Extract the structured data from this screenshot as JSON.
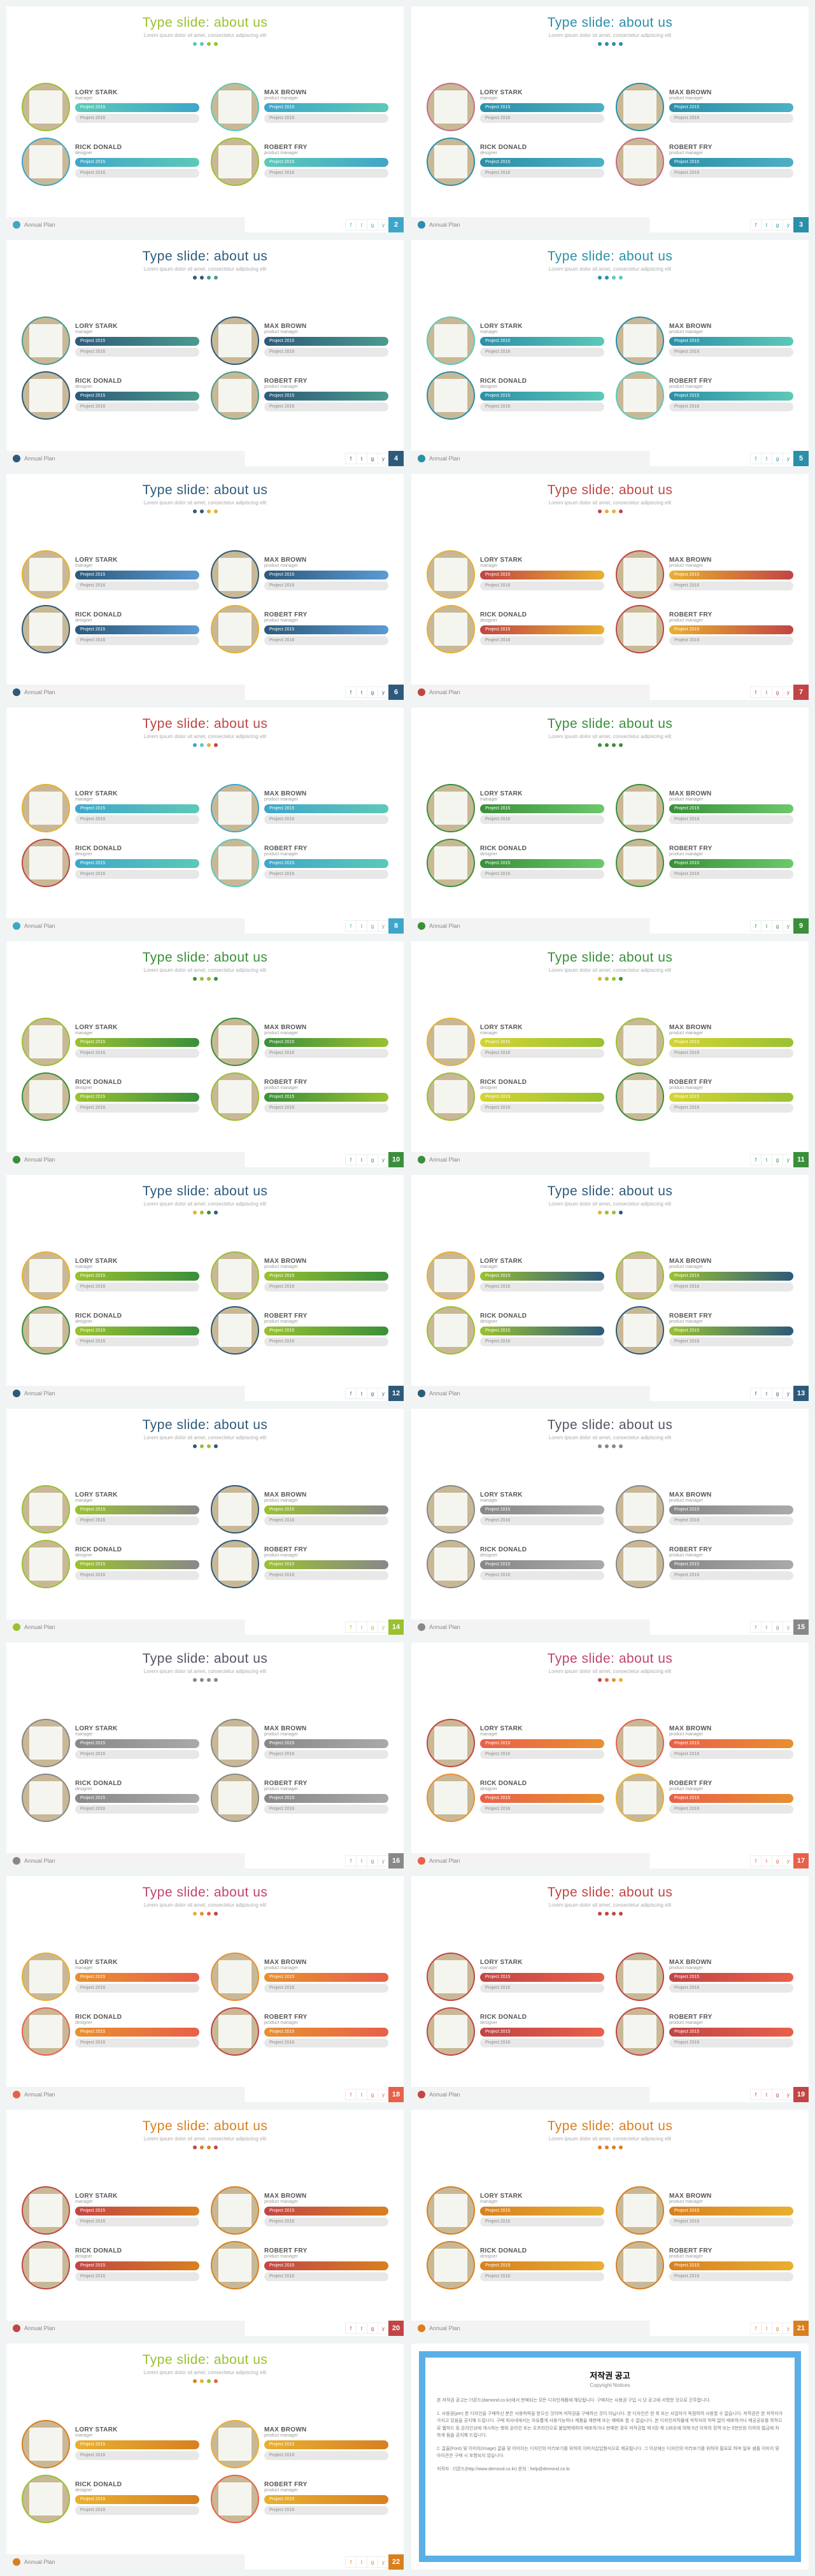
{
  "common": {
    "title": "Type slide: about us",
    "subtitle": "Lorem ipsum dolor sit amet, consectetur adipiscing elit",
    "footer_label": "Annual Plan",
    "people": [
      {
        "name": "LORY STARK",
        "role": "manager",
        "p1": "Project 2015",
        "p2": "Project 2016"
      },
      {
        "name": "MAX BROWN",
        "role": "product manager",
        "p1": "Project 2015",
        "p2": "Project 2016"
      },
      {
        "name": "RICK DONALD",
        "role": "designer",
        "p1": "Project 2015",
        "p2": "Project 2016"
      },
      {
        "name": "ROBERT FRY",
        "role": "product manager",
        "p1": "Project 2015",
        "p2": "Project 2016"
      }
    ],
    "social_icons": [
      "f",
      "t",
      "g",
      "y"
    ]
  },
  "themes": [
    {
      "pg": "2",
      "title": "#9ac132",
      "accent": "#3fa6c9",
      "dots": [
        "#5cc9b8",
        "#5cc9b8",
        "#9ac132",
        "#9ac132"
      ],
      "rings": [
        "#9ac132",
        "#5cc9b8",
        "#3fa6c9",
        "#9ac132"
      ],
      "pills": [
        [
          "#5cc9b8",
          "#3fa6c9"
        ],
        [
          "#3fa6c9",
          "#5cc9b8"
        ],
        [
          "#3fa6c9",
          "#5cc9b8"
        ],
        [
          "#5cc9b8",
          "#3fa6c9"
        ]
      ]
    },
    {
      "pg": "3",
      "title": "#2a8fa8",
      "accent": "#2a8fa8",
      "dots": [
        "#2a8fa8",
        "#2a8fa8",
        "#2a8fa8",
        "#2a8fa8"
      ],
      "rings": [
        "#c96b84",
        "#2a8fa8",
        "#2a8fa8",
        "#c96b84"
      ],
      "pills": [
        [
          "#2a8fa8",
          "#4db0c5"
        ],
        [
          "#2a8fa8",
          "#4db0c5"
        ],
        [
          "#2a8fa8",
          "#4db0c5"
        ],
        [
          "#2a8fa8",
          "#4db0c5"
        ]
      ]
    },
    {
      "pg": "4",
      "title": "#2d5a7a",
      "accent": "#2d5a7a",
      "dots": [
        "#2d5a7a",
        "#2d5a7a",
        "#4a9b8e",
        "#4a9b8e"
      ],
      "rings": [
        "#4a9b8e",
        "#2d5a7a",
        "#2d5a7a",
        "#4a9b8e"
      ],
      "pills": [
        [
          "#2d5a7a",
          "#4a9b8e"
        ],
        [
          "#2d5a7a",
          "#4a9b8e"
        ],
        [
          "#2d5a7a",
          "#4a9b8e"
        ],
        [
          "#2d5a7a",
          "#4a9b8e"
        ]
      ]
    },
    {
      "pg": "5",
      "title": "#2a8fa8",
      "accent": "#2a8fa8",
      "dots": [
        "#2a8fa8",
        "#2a8fa8",
        "#5cc9b8",
        "#5cc9b8"
      ],
      "rings": [
        "#5cc9b8",
        "#2a8fa8",
        "#2a8fa8",
        "#5cc9b8"
      ],
      "pills": [
        [
          "#2a8fa8",
          "#5cc9b8"
        ],
        [
          "#2a8fa8",
          "#5cc9b8"
        ],
        [
          "#2a8fa8",
          "#5cc9b8"
        ],
        [
          "#2a8fa8",
          "#5cc9b8"
        ]
      ]
    },
    {
      "pg": "6",
      "title": "#2d5a7a",
      "accent": "#2d5a7a",
      "dots": [
        "#2d5a7a",
        "#2d5a7a",
        "#e8b030",
        "#e8b030"
      ],
      "rings": [
        "#e8b030",
        "#2d5a7a",
        "#2d5a7a",
        "#e8b030"
      ],
      "pills": [
        [
          "#2d5a7a",
          "#5a9bd4"
        ],
        [
          "#2d5a7a",
          "#5a9bd4"
        ],
        [
          "#2d5a7a",
          "#5a9bd4"
        ],
        [
          "#2d5a7a",
          "#5a9bd4"
        ]
      ]
    },
    {
      "pg": "7",
      "title": "#c14545",
      "accent": "#c14545",
      "dots": [
        "#c14545",
        "#e8b030",
        "#e8b030",
        "#c14545"
      ],
      "rings": [
        "#e8b030",
        "#c14545",
        "#e8b030",
        "#c14545"
      ],
      "pills": [
        [
          "#c14545",
          "#e8b030"
        ],
        [
          "#e8b030",
          "#c14545"
        ],
        [
          "#c14545",
          "#e8b030"
        ],
        [
          "#e8b030",
          "#c14545"
        ]
      ]
    },
    {
      "pg": "8",
      "title": "#c14545",
      "accent": "#3fa6c9",
      "dots": [
        "#3fa6c9",
        "#5cc9b8",
        "#e8b030",
        "#c14545"
      ],
      "rings": [
        "#e8b030",
        "#3fa6c9",
        "#c14545",
        "#5cc9b8"
      ],
      "pills": [
        [
          "#3fa6c9",
          "#5cc9b8"
        ],
        [
          "#3fa6c9",
          "#5cc9b8"
        ],
        [
          "#3fa6c9",
          "#5cc9b8"
        ],
        [
          "#3fa6c9",
          "#5cc9b8"
        ]
      ]
    },
    {
      "pg": "9",
      "title": "#3a8f3a",
      "accent": "#3a8f3a",
      "dots": [
        "#3a8f3a",
        "#3a8f3a",
        "#3a8f3a",
        "#3a8f3a"
      ],
      "rings": [
        "#3a8f3a",
        "#3a8f3a",
        "#3a8f3a",
        "#3a8f3a"
      ],
      "pills": [
        [
          "#3a8f3a",
          "#6bc96b"
        ],
        [
          "#3a8f3a",
          "#6bc96b"
        ],
        [
          "#3a8f3a",
          "#6bc96b"
        ],
        [
          "#3a8f3a",
          "#6bc96b"
        ]
      ]
    },
    {
      "pg": "10",
      "title": "#3a8f3a",
      "accent": "#3a8f3a",
      "dots": [
        "#3a8f3a",
        "#9ac132",
        "#9ac132",
        "#3a8f3a"
      ],
      "rings": [
        "#9ac132",
        "#3a8f3a",
        "#3a8f3a",
        "#9ac132"
      ],
      "pills": [
        [
          "#9ac132",
          "#3a8f3a"
        ],
        [
          "#3a8f3a",
          "#9ac132"
        ],
        [
          "#9ac132",
          "#3a8f3a"
        ],
        [
          "#3a8f3a",
          "#9ac132"
        ]
      ]
    },
    {
      "pg": "11",
      "title": "#3a8f3a",
      "accent": "#3a8f3a",
      "dots": [
        "#e8b030",
        "#9ac132",
        "#9ac132",
        "#3a8f3a"
      ],
      "rings": [
        "#e8b030",
        "#9ac132",
        "#9ac132",
        "#3a8f3a"
      ],
      "pills": [
        [
          "#d4d432",
          "#9ac132"
        ],
        [
          "#d4d432",
          "#9ac132"
        ],
        [
          "#d4d432",
          "#9ac132"
        ],
        [
          "#d4d432",
          "#9ac132"
        ]
      ]
    },
    {
      "pg": "12",
      "title": "#2d5a7a",
      "accent": "#2d5a7a",
      "dots": [
        "#e8b030",
        "#9ac132",
        "#3a8f3a",
        "#2d5a7a"
      ],
      "rings": [
        "#e8b030",
        "#9ac132",
        "#3a8f3a",
        "#2d5a7a"
      ],
      "pills": [
        [
          "#9ac132",
          "#3a8f3a"
        ],
        [
          "#9ac132",
          "#3a8f3a"
        ],
        [
          "#9ac132",
          "#3a8f3a"
        ],
        [
          "#9ac132",
          "#3a8f3a"
        ]
      ]
    },
    {
      "pg": "13",
      "title": "#2d5a7a",
      "accent": "#2d5a7a",
      "dots": [
        "#e8b030",
        "#9ac132",
        "#9ac132",
        "#2d5a7a"
      ],
      "rings": [
        "#e8b030",
        "#9ac132",
        "#9ac132",
        "#2d5a7a"
      ],
      "pills": [
        [
          "#9ac132",
          "#2d5a7a"
        ],
        [
          "#9ac132",
          "#2d5a7a"
        ],
        [
          "#9ac132",
          "#2d5a7a"
        ],
        [
          "#9ac132",
          "#2d5a7a"
        ]
      ]
    },
    {
      "pg": "14",
      "title": "#2d5a7a",
      "accent": "#9ac132",
      "dots": [
        "#2d5a7a",
        "#9ac132",
        "#9ac132",
        "#2d5a7a"
      ],
      "rings": [
        "#9ac132",
        "#2d5a7a",
        "#9ac132",
        "#2d5a7a"
      ],
      "pills": [
        [
          "#9ac132",
          "#888"
        ],
        [
          "#9ac132",
          "#888"
        ],
        [
          "#9ac132",
          "#888"
        ],
        [
          "#9ac132",
          "#888"
        ]
      ]
    },
    {
      "pg": "15",
      "title": "#556",
      "accent": "#888",
      "dots": [
        "#888",
        "#888",
        "#888",
        "#888"
      ],
      "rings": [
        "#888",
        "#888",
        "#888",
        "#888"
      ],
      "pills": [
        [
          "#888",
          "#aaa"
        ],
        [
          "#888",
          "#aaa"
        ],
        [
          "#888",
          "#aaa"
        ],
        [
          "#888",
          "#aaa"
        ]
      ]
    },
    {
      "pg": "16",
      "title": "#556",
      "accent": "#888",
      "dots": [
        "#888",
        "#888",
        "#888",
        "#888"
      ],
      "rings": [
        "#888",
        "#888",
        "#888",
        "#888"
      ],
      "pills": [
        [
          "#888",
          "#aaa"
        ],
        [
          "#888",
          "#aaa"
        ],
        [
          "#888",
          "#aaa"
        ],
        [
          "#888",
          "#aaa"
        ]
      ]
    },
    {
      "pg": "17",
      "title": "#c1456b",
      "accent": "#e8604a",
      "dots": [
        "#c14545",
        "#e8604a",
        "#e89030",
        "#e8b030"
      ],
      "rings": [
        "#c14545",
        "#e8604a",
        "#e89030",
        "#e8b030"
      ],
      "pills": [
        [
          "#e8604a",
          "#e89030"
        ],
        [
          "#e8604a",
          "#e89030"
        ],
        [
          "#e8604a",
          "#e89030"
        ],
        [
          "#e8604a",
          "#e89030"
        ]
      ]
    },
    {
      "pg": "18",
      "title": "#c1456b",
      "accent": "#e8604a",
      "dots": [
        "#e8b030",
        "#e89030",
        "#e8604a",
        "#c14545"
      ],
      "rings": [
        "#e8b030",
        "#e89030",
        "#e8604a",
        "#c14545"
      ],
      "pills": [
        [
          "#e89030",
          "#e8604a"
        ],
        [
          "#e89030",
          "#e8604a"
        ],
        [
          "#e89030",
          "#e8604a"
        ],
        [
          "#e89030",
          "#e8604a"
        ]
      ]
    },
    {
      "pg": "19",
      "title": "#c14545",
      "accent": "#c14545",
      "dots": [
        "#c14545",
        "#c14545",
        "#c14545",
        "#c14545"
      ],
      "rings": [
        "#c14545",
        "#c14545",
        "#c14545",
        "#c14545"
      ],
      "pills": [
        [
          "#c14545",
          "#e8604a"
        ],
        [
          "#c14545",
          "#e8604a"
        ],
        [
          "#c14545",
          "#e8604a"
        ],
        [
          "#c14545",
          "#e8604a"
        ]
      ]
    },
    {
      "pg": "20",
      "title": "#d88020",
      "accent": "#c14545",
      "dots": [
        "#c14545",
        "#d88020",
        "#d88020",
        "#c14545"
      ],
      "rings": [
        "#c14545",
        "#d88020",
        "#c14545",
        "#d88020"
      ],
      "pills": [
        [
          "#c14545",
          "#d88020"
        ],
        [
          "#c14545",
          "#d88020"
        ],
        [
          "#c14545",
          "#d88020"
        ],
        [
          "#c14545",
          "#d88020"
        ]
      ]
    },
    {
      "pg": "21",
      "title": "#d88020",
      "accent": "#d88020",
      "dots": [
        "#d88020",
        "#d88020",
        "#d88020",
        "#d88020"
      ],
      "rings": [
        "#d88020",
        "#d88020",
        "#d88020",
        "#d88020"
      ],
      "pills": [
        [
          "#d88020",
          "#e8b030"
        ],
        [
          "#d88020",
          "#e8b030"
        ],
        [
          "#d88020",
          "#e8b030"
        ],
        [
          "#d88020",
          "#e8b030"
        ]
      ]
    },
    {
      "pg": "22",
      "title": "#9ac132",
      "accent": "#d88020",
      "dots": [
        "#d88020",
        "#e8b030",
        "#9ac132",
        "#e8604a"
      ],
      "rings": [
        "#d88020",
        "#e8b030",
        "#9ac132",
        "#e8604a"
      ],
      "pills": [
        [
          "#e8b030",
          "#d88020"
        ],
        [
          "#e8b030",
          "#d88020"
        ],
        [
          "#e8b030",
          "#d88020"
        ],
        [
          "#e8b030",
          "#d88020"
        ]
      ]
    }
  ],
  "copyright": {
    "title": "저작권 공고",
    "subtitle": "Copyright Notices",
    "p1": "본 저작권 공고는 더몬드(damond.co.kr)에서 판매되는 모든 디자인제품에 해당됩니다. 구매자는 사용권 구입 시 당 공고에 서명한 것으로 간주합니다.",
    "p2": "1. 사용권(per) 본 디자인을 구매하신 분은 사용허락을 받으신 것이며 저작권을 구매하신 것이 아닙니다. 본 디자인은 한 회 또는 사업자가 독점하여 사용할 수 없습니다. 저작권은 본 저작자가 가지고 있음을 공지해 드립니다. 구매 회사내에서는 자유롭게 사용가능하나 제품을 재판매 또는 재배포 할 수 없습니다. 본 디자인저작물에 저작자의 허락 없이 배포하거나 제공공유를 목적으로 웹하드 등 온라인상에 게시하는 행위 온라인 또는 오프라인으로 불법복제하여 배포하거나 판매한 경우 저작권법 제 5장 제 136조에 의해 5년 이하의 징역 또는 5천만원 이하의 벌금에 처하게 됨을 공지해 드립니다.",
    "p3": "2. 글꼴(Font) 및 이미지(Image) 글꼴 및 이미지는 디자인의 미리보기를 위하여 이미지삽입형식으로 제공됩니다. 그 이상에는 디자인의 미리보기를 위하여 필요로 하며 일부 샘플 이미지 및 아이콘은 구매 시 포함되지 않습니다.",
    "p4": "저작자 : 더몬드(http://www.demond.co.kr)  문의 : help@demond.co.kr"
  }
}
